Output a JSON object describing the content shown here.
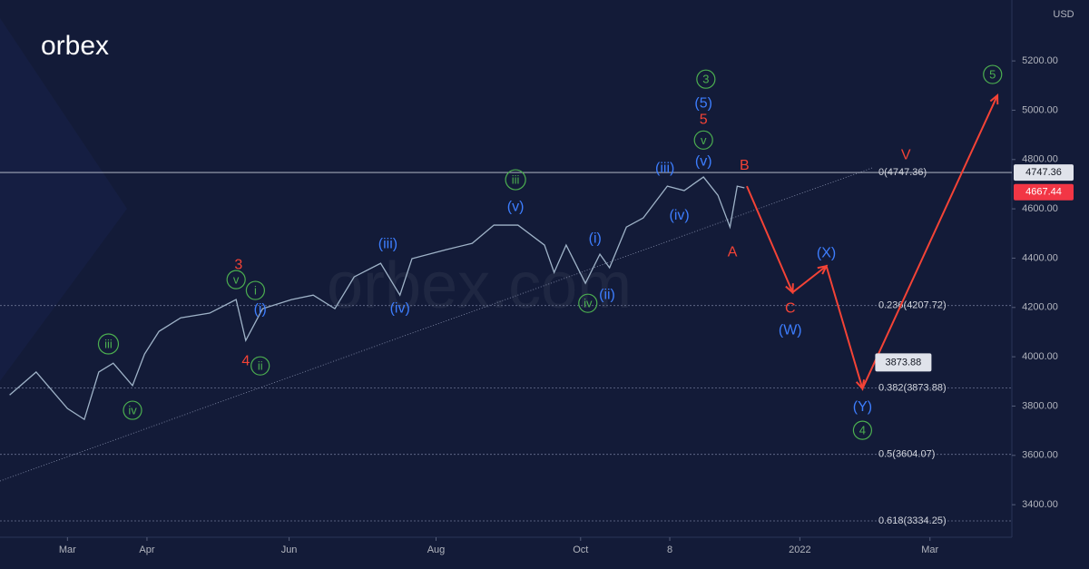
{
  "chart_data": {
    "type": "line",
    "logo": "orbex",
    "watermark": "orbex.com",
    "y_unit": "USD",
    "xlim": [
      0,
      420
    ],
    "xticks": [
      {
        "value": 28,
        "label": "Mar"
      },
      {
        "value": 61,
        "label": "Apr"
      },
      {
        "value": 120,
        "label": "Jun"
      },
      {
        "value": 181,
        "label": "Aug"
      },
      {
        "value": 241,
        "label": "Oct"
      },
      {
        "value": 278,
        "label": "8"
      },
      {
        "value": 332,
        "label": "2022"
      },
      {
        "value": 386,
        "label": "Mar"
      }
    ],
    "ylim": [
      3268,
      5447
    ],
    "yticks": [
      {
        "value": 3400,
        "label": "3400.00"
      },
      {
        "value": 3600,
        "label": "3600.00"
      },
      {
        "value": 3800,
        "label": "3800.00"
      },
      {
        "value": 4000,
        "label": "4000.00"
      },
      {
        "value": 4200,
        "label": "4200.00"
      },
      {
        "value": 4400,
        "label": "4400.00"
      },
      {
        "value": 4600,
        "label": "4600.00"
      },
      {
        "value": 4800,
        "label": "4800.00"
      },
      {
        "value": 5000,
        "label": "5000.00"
      },
      {
        "value": 5200,
        "label": "5200.00"
      }
    ],
    "series": [
      {
        "name": "Price",
        "color": "#9fb3c8",
        "x": [
          4,
          15,
          28,
          35,
          41,
          47,
          55,
          60,
          66,
          75,
          87,
          98,
          102,
          109,
          121,
          130,
          139,
          147,
          158,
          166,
          171,
          185,
          196,
          205,
          215,
          226,
          230,
          235,
          243,
          249,
          253,
          260,
          267,
          277,
          284,
          292,
          298,
          303,
          306,
          309
        ],
        "values": [
          3845,
          3938,
          3790,
          3746,
          3938,
          3974,
          3883,
          4011,
          4103,
          4158,
          4177,
          4232,
          4066,
          4195,
          4232,
          4250,
          4195,
          4324,
          4379,
          4250,
          4398,
          4434,
          4460,
          4534,
          4534,
          4453,
          4342,
          4453,
          4298,
          4416,
          4361,
          4526,
          4563,
          4692,
          4674,
          4729,
          4655,
          4526,
          4692,
          4685
        ]
      }
    ],
    "projection": {
      "color": "#f44336",
      "x": [
        310,
        329,
        343,
        358,
        414
      ],
      "values": [
        4692,
        4261,
        4368,
        3871,
        5060
      ]
    },
    "trendline": {
      "x": [
        0,
        362
      ],
      "values": [
        3496,
        4766
      ]
    },
    "levels": [
      {
        "value": 4747.36,
        "label": "0(4747.36)",
        "solid": true
      },
      {
        "value": 4207.72,
        "label": "0.236(4207.72)"
      },
      {
        "value": 3873.88,
        "label": "0.382(3873.88)"
      },
      {
        "value": 3604.07,
        "label": "0.5(3604.07)"
      },
      {
        "value": 3334.25,
        "label": "0.618(3334.25)"
      }
    ],
    "price_badges": [
      {
        "value": 4747.36,
        "label": "4747.36",
        "color": "#e0e3eb"
      },
      {
        "value": 4667.44,
        "label": "4667.44",
        "color": "#f23645"
      }
    ],
    "callout": {
      "x": 358,
      "value": 3873.88,
      "label": "3873.88"
    },
    "annotations": [
      {
        "text": "3",
        "x": 293,
        "y": 5126,
        "color": "#4caf50",
        "circled": true
      },
      {
        "text": "(5)",
        "x": 292,
        "y": 5030,
        "color": "#3d7eff"
      },
      {
        "text": "5",
        "x": 292,
        "y": 4964,
        "color": "#f44336"
      },
      {
        "text": "v",
        "x": 292,
        "y": 4879,
        "color": "#4caf50",
        "circled": true
      },
      {
        "text": "(v)",
        "x": 292,
        "y": 4795,
        "color": "#3d7eff"
      },
      {
        "text": "(iii)",
        "x": 276,
        "y": 4766,
        "color": "#3d7eff"
      },
      {
        "text": "(iv)",
        "x": 282,
        "y": 4575,
        "color": "#3d7eff"
      },
      {
        "text": "B",
        "x": 309,
        "y": 4777,
        "color": "#f44336"
      },
      {
        "text": "A",
        "x": 304,
        "y": 4427,
        "color": "#f44336"
      },
      {
        "text": "V",
        "x": 376,
        "y": 4821,
        "color": "#f44336"
      },
      {
        "text": "iii",
        "x": 214,
        "y": 4718,
        "color": "#4caf50",
        "circled": true
      },
      {
        "text": "(v)",
        "x": 214,
        "y": 4611,
        "color": "#3d7eff"
      },
      {
        "text": "(i)",
        "x": 247,
        "y": 4482,
        "color": "#3d7eff"
      },
      {
        "text": "(ii)",
        "x": 252,
        "y": 4254,
        "color": "#3d7eff"
      },
      {
        "text": "iv",
        "x": 244,
        "y": 4217,
        "color": "#4caf50",
        "circled": true
      },
      {
        "text": "(iii)",
        "x": 161,
        "y": 4460,
        "color": "#3d7eff"
      },
      {
        "text": "(iv)",
        "x": 166,
        "y": 4199,
        "color": "#3d7eff"
      },
      {
        "text": "3",
        "x": 99,
        "y": 4375,
        "color": "#f44336"
      },
      {
        "text": "v",
        "x": 98,
        "y": 4313,
        "color": "#4caf50",
        "circled": true
      },
      {
        "text": "i",
        "x": 106,
        "y": 4269,
        "color": "#4caf50",
        "circled": true
      },
      {
        "text": "(i)",
        "x": 108,
        "y": 4195,
        "color": "#3d7eff"
      },
      {
        "text": "4",
        "x": 102,
        "y": 3985,
        "color": "#f44336"
      },
      {
        "text": "ii",
        "x": 108,
        "y": 3963,
        "color": "#4caf50",
        "circled": true
      },
      {
        "text": "iii",
        "x": 45,
        "y": 4052,
        "color": "#4caf50",
        "circled": true
      },
      {
        "text": "iv",
        "x": 55,
        "y": 3783,
        "color": "#4caf50",
        "circled": true
      },
      {
        "text": "(X)",
        "x": 343,
        "y": 4423,
        "color": "#3d7eff"
      },
      {
        "text": "C",
        "x": 328,
        "y": 4199,
        "color": "#f44336"
      },
      {
        "text": "(W)",
        "x": 328,
        "y": 4110,
        "color": "#3d7eff"
      },
      {
        "text": "(Y)",
        "x": 358,
        "y": 3798,
        "color": "#3d7eff"
      },
      {
        "text": "4",
        "x": 358,
        "y": 3702,
        "color": "#4caf50",
        "circled": true
      },
      {
        "text": "5",
        "x": 412,
        "y": 5145,
        "color": "#4caf50",
        "circled": true
      }
    ]
  }
}
